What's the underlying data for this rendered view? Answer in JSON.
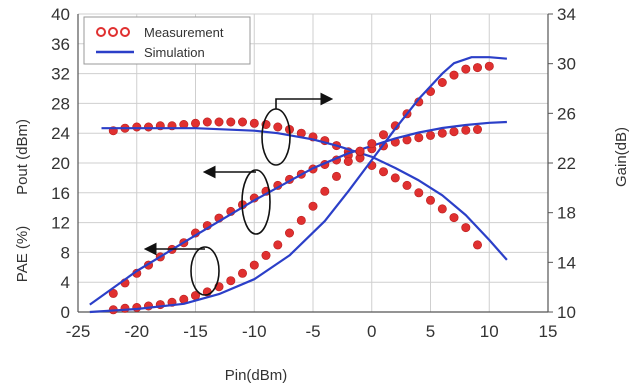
{
  "chart_data": {
    "type": "line",
    "xlabel": "Pin(dBm)",
    "ylabel_left": "Pout (dBm)",
    "ylabel_left_lower": "PAE (%)",
    "ylabel_right": "Gain(dB)",
    "xlim": [
      -25,
      15
    ],
    "ylim_left": [
      0,
      40
    ],
    "ylim_right": [
      10,
      34
    ],
    "x_ticks": [
      "-25",
      "-20",
      "-15",
      "-10",
      "-5",
      "0",
      "5",
      "10",
      "15"
    ],
    "y_left_ticks": [
      "0",
      "4",
      "8",
      "12",
      "16",
      "20",
      "24",
      "28",
      "32",
      "36",
      "40"
    ],
    "y_right_ticks": [
      "10",
      "14",
      "18",
      "22",
      "26",
      "30",
      "34"
    ],
    "grid": true,
    "legend_position": "top-left",
    "legend": [
      {
        "label": "Measurement",
        "style": "markers",
        "color": "#e03030"
      },
      {
        "label": "Simulation",
        "style": "line",
        "color": "#2b3fc8"
      }
    ],
    "colors": {
      "measurement": "#e03030",
      "simulation": "#2b3fc8",
      "grid": "#cfcfcf",
      "axis": "#555555"
    },
    "annotations": [
      "ellipse with arrow pointing right (Gain axis)",
      "ellipse with arrow pointing left (Pout axis)",
      "ellipse with arrow pointing left (PAE axis)"
    ],
    "series": [
      {
        "name": "Measurement",
        "role": "Gain",
        "axis": "right",
        "kind": "markers",
        "x": [
          -22,
          -21,
          -20,
          -19,
          -18,
          -17,
          -16,
          -15,
          -14,
          -13,
          -12,
          -11,
          -10,
          -9,
          -8,
          -7,
          -6,
          -5,
          -4,
          -3,
          -2,
          -1,
          0,
          1,
          2,
          3,
          4,
          5,
          6,
          7,
          8,
          9
        ],
        "y": [
          24.6,
          24.8,
          24.9,
          24.9,
          25.0,
          25.0,
          25.1,
          25.2,
          25.3,
          25.3,
          25.3,
          25.3,
          25.2,
          25.1,
          24.9,
          24.7,
          24.4,
          24.1,
          23.8,
          23.4,
          22.9,
          22.4,
          21.8,
          21.3,
          20.8,
          20.2,
          19.6,
          19.0,
          18.3,
          17.6,
          16.8,
          15.4
        ]
      },
      {
        "name": "Simulation",
        "role": "Gain",
        "axis": "right",
        "kind": "line",
        "x": [
          -23,
          -20,
          -15,
          -10,
          -8,
          -5,
          -3,
          0,
          2,
          4,
          6,
          8,
          10,
          11.5
        ],
        "y": [
          24.8,
          24.8,
          24.8,
          24.6,
          24.4,
          23.9,
          23.4,
          22.5,
          21.6,
          20.6,
          19.4,
          17.8,
          15.8,
          14.2
        ]
      },
      {
        "name": "Measurement",
        "role": "Pout",
        "axis": "left",
        "kind": "markers",
        "x": [
          -22,
          -21,
          -20,
          -19,
          -18,
          -17,
          -16,
          -15,
          -14,
          -13,
          -12,
          -11,
          -10,
          -9,
          -8,
          -7,
          -6,
          -5,
          -4,
          -3,
          -2,
          -1,
          0,
          1,
          2,
          3,
          4,
          5,
          6,
          7,
          8,
          9
        ],
        "y": [
          2.5,
          3.9,
          5.2,
          6.3,
          7.4,
          8.4,
          9.3,
          10.6,
          11.6,
          12.6,
          13.5,
          14.4,
          15.3,
          16.2,
          17.0,
          17.8,
          18.5,
          19.2,
          19.8,
          20.4,
          21.0,
          21.5,
          21.9,
          22.3,
          22.8,
          23.1,
          23.4,
          23.7,
          24.0,
          24.2,
          24.4,
          24.5
        ]
      },
      {
        "name": "Simulation",
        "role": "Pout",
        "axis": "left",
        "kind": "line",
        "x": [
          -24,
          -20,
          -15,
          -10,
          -5,
          -2,
          0,
          2,
          4,
          6,
          8,
          10,
          11.5
        ],
        "y": [
          1.0,
          5.5,
          10.3,
          15.0,
          19.3,
          21.3,
          22.3,
          23.3,
          24.1,
          24.7,
          25.1,
          25.4,
          25.5
        ]
      },
      {
        "name": "Measurement",
        "role": "PAE",
        "axis": "left",
        "kind": "markers",
        "x": [
          -22,
          -21,
          -20,
          -19,
          -18,
          -17,
          -16,
          -15,
          -14,
          -13,
          -12,
          -11,
          -10,
          -9,
          -8,
          -7,
          -6,
          -5,
          -4,
          -3,
          -2,
          -1,
          0,
          1,
          2,
          3,
          4,
          5,
          6,
          7,
          8,
          9,
          10
        ],
        "y": [
          0.3,
          0.5,
          0.6,
          0.8,
          1.0,
          1.3,
          1.7,
          2.2,
          2.7,
          3.4,
          4.2,
          5.2,
          6.3,
          7.6,
          9.0,
          10.6,
          12.3,
          14.2,
          16.2,
          18.2,
          20.2,
          21.6,
          22.6,
          23.8,
          25.0,
          26.6,
          28.2,
          29.6,
          30.8,
          31.8,
          32.6,
          32.8,
          33.0
        ]
      },
      {
        "name": "Simulation",
        "role": "PAE",
        "axis": "left",
        "kind": "line",
        "x": [
          -24,
          -20,
          -16,
          -13,
          -10,
          -7,
          -4,
          -2,
          0,
          2,
          4,
          6,
          7,
          8.5,
          10,
          11.5
        ],
        "y": [
          0.0,
          0.4,
          1.1,
          2.4,
          4.4,
          7.6,
          12.2,
          16.2,
          20.4,
          24.6,
          28.6,
          32.0,
          33.4,
          34.2,
          34.2,
          34.0
        ]
      }
    ]
  }
}
